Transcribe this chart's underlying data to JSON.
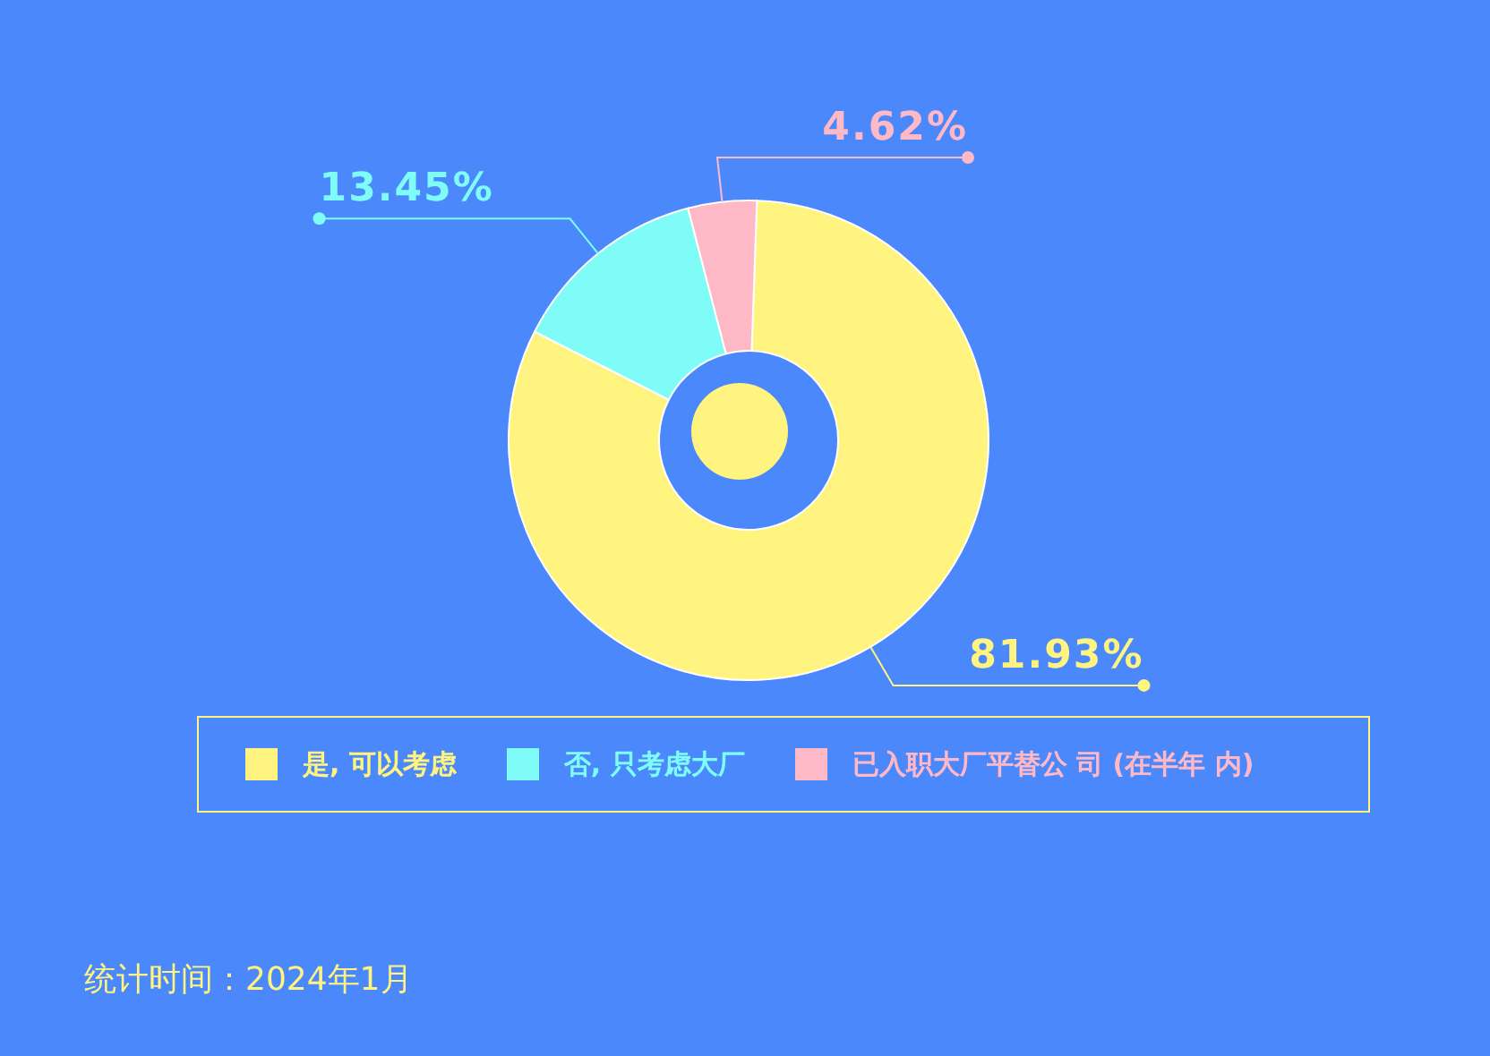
{
  "chart_data": {
    "type": "donut",
    "categories": [
      "是, 可以考虑",
      "否, 只考虑大厂",
      "已入职大厂平替公 司 (在半年 内)"
    ],
    "values": [
      81.93,
      13.45,
      4.62
    ],
    "colors": [
      "#fff47f",
      "#7ffcf7",
      "#ffb8c6"
    ],
    "value_labels": [
      "81.93%",
      "13.45%",
      "4.62%"
    ],
    "legend": "bottom",
    "annotations": [
      "统计时间：2024年1月"
    ]
  }
}
